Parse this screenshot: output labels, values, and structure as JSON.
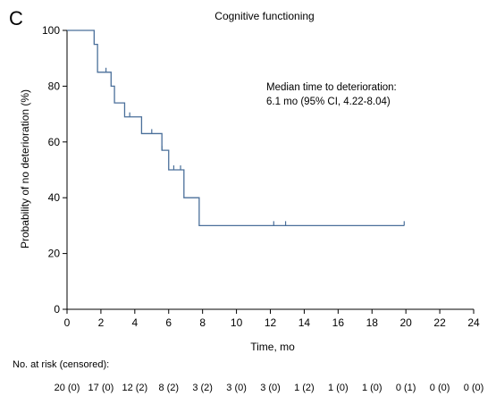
{
  "panel_label": "C",
  "chart_data": {
    "type": "line",
    "title": "Cognitive functioning",
    "xlabel": "Time, mo",
    "ylabel": "Probability of no deterioration (%)",
    "xlim": [
      0,
      24
    ],
    "ylim": [
      0,
      100
    ],
    "xticks": [
      0,
      2,
      4,
      6,
      8,
      10,
      12,
      14,
      16,
      18,
      20,
      22,
      24
    ],
    "yticks": [
      0,
      20,
      40,
      60,
      80,
      100
    ],
    "grid": false,
    "legend": "none",
    "line_color": "#4a6f9a",
    "step_curve": {
      "x": [
        0,
        1.6,
        1.8,
        2.6,
        2.8,
        3.4,
        4.4,
        5.6,
        6.0,
        6.9,
        7.8,
        19.9
      ],
      "y": [
        100,
        95,
        85,
        80,
        74,
        69,
        63,
        57,
        50,
        40,
        30,
        30
      ]
    },
    "censor_marks": {
      "x": [
        2.3,
        3.7,
        5.0,
        5.6,
        6.3,
        6.7,
        12.2,
        12.9,
        19.9
      ],
      "y": [
        85,
        69,
        63,
        57,
        50,
        50,
        30,
        30,
        30
      ]
    },
    "annotation": {
      "line1": "Median time to deterioration:",
      "line2": "6.1 mo (95% CI, 4.22-8.04)"
    },
    "risk_table": {
      "label": "No. at risk (censored):",
      "values": [
        "20 (0)",
        "17 (0)",
        "12 (2)",
        "8 (2)",
        "3 (2)",
        "3 (0)",
        "3 (0)",
        "1 (2)",
        "1 (0)",
        "1 (0)",
        "0 (1)",
        "0 (0)",
        "0 (0)"
      ]
    }
  }
}
